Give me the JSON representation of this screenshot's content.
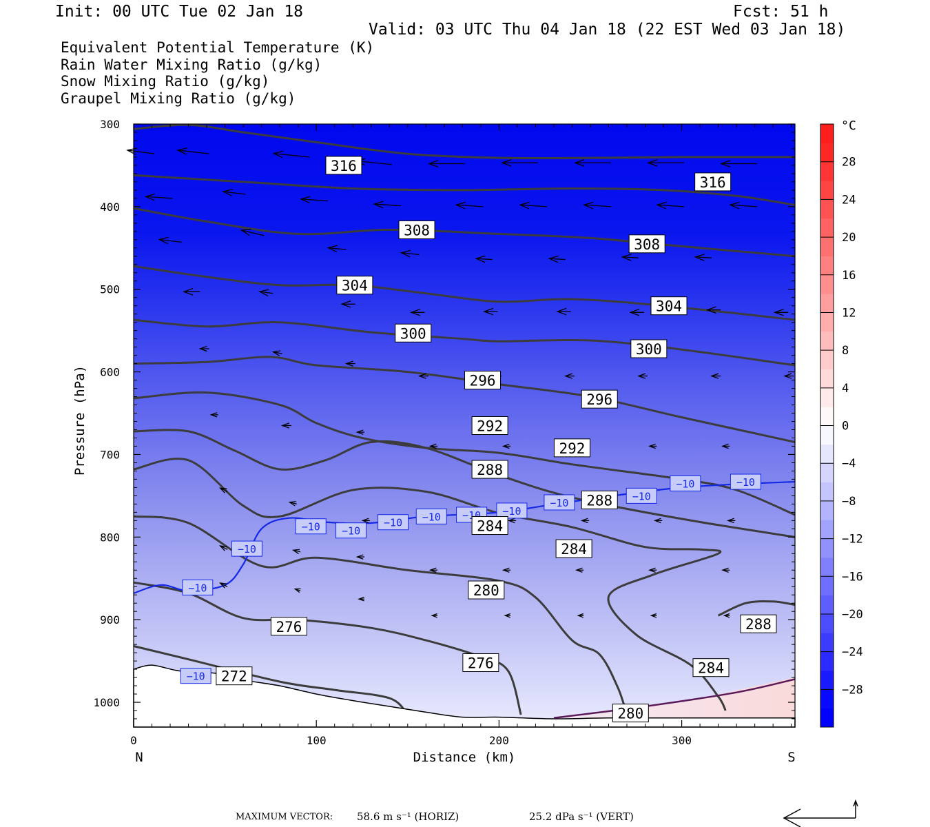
{
  "header": {
    "init": "Init: 00 UTC Tue 02 Jan 18",
    "fcst": "Fcst:   51 h",
    "valid": "Valid: 03 UTC Thu 04 Jan 18 (22 EST Wed 03 Jan 18)"
  },
  "fields": [
    {
      "label": "Equivalent Potential Temperature (K)",
      "color": "#555555"
    },
    {
      "label": "Rain Water Mixing Ratio (g/kg)",
      "color": "#0a7a0a"
    },
    {
      "label": "Snow Mixing Ratio (g/kg)",
      "color": "#f0905a"
    },
    {
      "label": "Graupel Mixing Ratio (g/kg)",
      "color": "#ee77ee"
    }
  ],
  "chart_data": {
    "type": "cross-section",
    "xlabel": "Distance (km)",
    "ylabel": "Pressure (hPa)",
    "xlim": [
      0,
      362
    ],
    "ylim": [
      1030,
      300
    ],
    "x_ticks": [
      0,
      100,
      200,
      300
    ],
    "y_ticks": [
      300,
      400,
      500,
      600,
      700,
      800,
      900,
      1000
    ],
    "x_end_labels": [
      "N",
      "S"
    ],
    "colorbar": {
      "unit": "°C",
      "range": [
        -32,
        32
      ],
      "tick_labels": [
        "28",
        "24",
        "20",
        "16",
        "12",
        "8",
        "4",
        "0",
        "−4",
        "−8",
        "−12",
        "−16",
        "−20",
        "−24",
        "−28"
      ],
      "tick_values": [
        28,
        24,
        20,
        16,
        12,
        8,
        4,
        0,
        -4,
        -8,
        -12,
        -16,
        -20,
        -24,
        -28
      ]
    },
    "theta_e_contours": [
      {
        "value": "316",
        "pts": [
          [
            0,
            306
          ],
          [
            30,
            301
          ],
          [
            60,
            310
          ],
          [
            100,
            322
          ],
          [
            150,
            336
          ],
          [
            200,
            341
          ],
          [
            250,
            341
          ],
          [
            300,
            340
          ],
          [
            362,
            340
          ]
        ]
      },
      {
        "value": "316",
        "pts": [
          [
            0,
            362
          ],
          [
            60,
            370
          ],
          [
            120,
            378
          ],
          [
            180,
            380
          ],
          [
            240,
            378
          ],
          [
            290,
            380
          ],
          [
            330,
            387
          ],
          [
            362,
            398
          ]
        ]
      },
      {
        "value": "308",
        "pts": [
          [
            0,
            402
          ],
          [
            40,
            418
          ],
          [
            90,
            433
          ],
          [
            140,
            428
          ],
          [
            200,
            433
          ],
          [
            250,
            438
          ],
          [
            300,
            448
          ],
          [
            362,
            460
          ]
        ]
      },
      {
        "value": "304",
        "pts": [
          [
            0,
            472
          ],
          [
            40,
            485
          ],
          [
            80,
            495
          ],
          [
            120,
            495
          ],
          [
            160,
            505
          ],
          [
            200,
            515
          ],
          [
            240,
            512
          ],
          [
            290,
            520
          ],
          [
            362,
            537
          ]
        ]
      },
      {
        "value": "300",
        "pts": [
          [
            0,
            537
          ],
          [
            40,
            545
          ],
          [
            80,
            540
          ],
          [
            130,
            552
          ],
          [
            180,
            560
          ],
          [
            200,
            563
          ],
          [
            250,
            562
          ],
          [
            300,
            573
          ],
          [
            362,
            592
          ]
        ]
      },
      {
        "value": "296",
        "pts": [
          [
            0,
            590
          ],
          [
            40,
            588
          ],
          [
            75,
            582
          ],
          [
            100,
            592
          ],
          [
            150,
            600
          ],
          [
            200,
            615
          ],
          [
            250,
            630
          ],
          [
            300,
            655
          ],
          [
            362,
            685
          ]
        ]
      },
      {
        "value": "292",
        "pts": [
          [
            0,
            632
          ],
          [
            40,
            625
          ],
          [
            80,
            640
          ],
          [
            100,
            662
          ],
          [
            125,
            680
          ],
          [
            160,
            692
          ],
          [
            200,
            698
          ],
          [
            240,
            712
          ],
          [
            300,
            730
          ],
          [
            330,
            743
          ],
          [
            362,
            773
          ]
        ]
      },
      {
        "value": "288",
        "pts": [
          [
            0,
            672
          ],
          [
            30,
            672
          ],
          [
            55,
            695
          ],
          [
            80,
            718
          ],
          [
            105,
            707
          ],
          [
            130,
            685
          ],
          [
            160,
            692
          ],
          [
            200,
            725
          ],
          [
            240,
            752
          ],
          [
            300,
            778
          ],
          [
            362,
            800
          ]
        ]
      },
      {
        "value": "284",
        "pts": [
          [
            0,
            718
          ],
          [
            30,
            707
          ],
          [
            60,
            762
          ],
          [
            80,
            775
          ],
          [
            120,
            743
          ],
          [
            160,
            745
          ],
          [
            200,
            771
          ],
          [
            240,
            788
          ],
          [
            280,
            812
          ],
          [
            310,
            815
          ],
          [
            320,
            820
          ],
          [
            285,
            845
          ],
          [
            260,
            872
          ],
          [
            275,
            918
          ],
          [
            305,
            955
          ],
          [
            320,
            993
          ],
          [
            324,
            1010
          ]
        ]
      },
      {
        "value": "280",
        "pts": [
          [
            0,
            775
          ],
          [
            30,
            783
          ],
          [
            70,
            835
          ],
          [
            100,
            825
          ],
          [
            150,
            840
          ],
          [
            200,
            853
          ],
          [
            220,
            873
          ],
          [
            240,
            925
          ],
          [
            255,
            942
          ],
          [
            265,
            982
          ],
          [
            270,
            1015
          ]
        ]
      },
      {
        "value": "276",
        "pts": [
          [
            0,
            855
          ],
          [
            30,
            868
          ],
          [
            60,
            898
          ],
          [
            90,
            900
          ],
          [
            130,
            910
          ],
          [
            160,
            925
          ],
          [
            190,
            945
          ],
          [
            205,
            962
          ],
          [
            212,
            1015
          ]
        ]
      },
      {
        "value": "272",
        "pts": [
          [
            0,
            932
          ],
          [
            30,
            948
          ],
          [
            80,
            975
          ],
          [
            110,
            985
          ],
          [
            140,
            995
          ],
          [
            150,
            1015
          ]
        ]
      },
      {
        "value": "288",
        "pts": [
          [
            320,
            895
          ],
          [
            335,
            880
          ],
          [
            350,
            878
          ],
          [
            362,
            882
          ]
        ]
      }
    ],
    "theta_e_labels": [
      {
        "text": "316",
        "x": 115,
        "p": 350
      },
      {
        "text": "316",
        "x": 317,
        "p": 370
      },
      {
        "text": "308",
        "x": 155,
        "p": 428
      },
      {
        "text": "308",
        "x": 281,
        "p": 445
      },
      {
        "text": "304",
        "x": 121,
        "p": 495
      },
      {
        "text": "304",
        "x": 293,
        "p": 520
      },
      {
        "text": "300",
        "x": 153,
        "p": 553
      },
      {
        "text": "300",
        "x": 282,
        "p": 572
      },
      {
        "text": "296",
        "x": 191,
        "p": 610
      },
      {
        "text": "296",
        "x": 255,
        "p": 633
      },
      {
        "text": "292",
        "x": 195,
        "p": 665
      },
      {
        "text": "292",
        "x": 240,
        "p": 692
      },
      {
        "text": "288",
        "x": 195,
        "p": 718
      },
      {
        "text": "288",
        "x": 255,
        "p": 755
      },
      {
        "text": "284",
        "x": 195,
        "p": 786
      },
      {
        "text": "284",
        "x": 241,
        "p": 814
      },
      {
        "text": "280",
        "x": 193,
        "p": 864
      },
      {
        "text": "280",
        "x": 272,
        "p": 1013
      },
      {
        "text": "276",
        "x": 85,
        "p": 908
      },
      {
        "text": "276",
        "x": 190,
        "p": 952
      },
      {
        "text": "272",
        "x": 55,
        "p": 968
      },
      {
        "text": "284",
        "x": 316,
        "p": 958
      },
      {
        "text": "288",
        "x": 342,
        "p": 905
      }
    ],
    "temp_isotherm": {
      "value": "−10",
      "pts": [
        [
          0,
          868
        ],
        [
          15,
          858
        ],
        [
          30,
          865
        ],
        [
          50,
          858
        ],
        [
          60,
          833
        ],
        [
          70,
          790
        ],
        [
          85,
          777
        ],
        [
          105,
          782
        ],
        [
          130,
          783
        ],
        [
          160,
          775
        ],
        [
          200,
          770
        ],
        [
          240,
          757
        ],
        [
          300,
          740
        ],
        [
          362,
          733
        ]
      ],
      "labels": [
        [
          35,
          861
        ],
        [
          62,
          814
        ],
        [
          97,
          787
        ],
        [
          119,
          792
        ],
        [
          142,
          782
        ],
        [
          163,
          775
        ],
        [
          185,
          773
        ],
        [
          207,
          768
        ],
        [
          233,
          758
        ],
        [
          278,
          750
        ],
        [
          302,
          735
        ],
        [
          335,
          733
        ],
        [
          34,
          968
        ]
      ]
    },
    "wind_vectors": [
      [
        0,
        336,
        -30,
        -4
      ],
      [
        30,
        336,
        -35,
        -4
      ],
      [
        85,
        340,
        -40,
        -4
      ],
      [
        130,
        349,
        -40,
        -4
      ],
      [
        170,
        348,
        -40,
        0
      ],
      [
        210,
        347,
        -40,
        0
      ],
      [
        250,
        347,
        -40,
        0
      ],
      [
        290,
        347,
        -40,
        0
      ],
      [
        330,
        348,
        -40,
        0
      ],
      [
        10,
        390,
        -30,
        -2
      ],
      [
        50,
        385,
        -25,
        -3
      ],
      [
        95,
        393,
        -30,
        -2
      ],
      [
        135,
        399,
        -30,
        -2
      ],
      [
        180,
        400,
        -30,
        -2
      ],
      [
        215,
        400,
        -30,
        -2
      ],
      [
        250,
        400,
        -30,
        -2
      ],
      [
        290,
        400,
        -30,
        -2
      ],
      [
        330,
        400,
        -30,
        -2
      ],
      [
        15,
        443,
        -25,
        -3
      ],
      [
        60,
        435,
        -25,
        -6
      ],
      [
        105,
        452,
        -20,
        -2
      ],
      [
        145,
        458,
        -20,
        -2
      ],
      [
        185,
        464,
        -18,
        -1
      ],
      [
        225,
        464,
        -18,
        -1
      ],
      [
        265,
        462,
        -18,
        -1
      ],
      [
        305,
        462,
        -18,
        -1
      ],
      [
        25,
        503,
        -18,
        0
      ],
      [
        65,
        505,
        -15,
        -2
      ],
      [
        110,
        518,
        -15,
        0
      ],
      [
        148,
        528,
        -15,
        0
      ],
      [
        188,
        527,
        -15,
        0
      ],
      [
        228,
        527,
        -15,
        0
      ],
      [
        268,
        528,
        -15,
        0
      ],
      [
        310,
        525,
        -15,
        0
      ],
      [
        347,
        528,
        -15,
        0
      ],
      [
        30,
        572,
        -10,
        0
      ],
      [
        70,
        578,
        -10,
        -2
      ],
      [
        110,
        590,
        -10,
        0
      ],
      [
        150,
        605,
        -10,
        0
      ],
      [
        190,
        605,
        -10,
        0
      ],
      [
        230,
        605,
        -10,
        0
      ],
      [
        270,
        605,
        -10,
        0
      ],
      [
        310,
        605,
        -10,
        0
      ],
      [
        350,
        605,
        -10,
        0
      ],
      [
        35,
        652,
        -8,
        0
      ],
      [
        75,
        665,
        -10,
        0
      ],
      [
        115,
        673,
        -8,
        0
      ],
      [
        155,
        690,
        -8,
        0
      ],
      [
        195,
        690,
        -8,
        0
      ],
      [
        235,
        690,
        -8,
        0
      ],
      [
        275,
        690,
        -8,
        0
      ],
      [
        315,
        690,
        -8,
        0
      ],
      [
        40,
        745,
        -8,
        -4
      ],
      [
        78,
        760,
        -8,
        -2
      ],
      [
        118,
        780,
        -8,
        0
      ],
      [
        158,
        780,
        -8,
        0
      ],
      [
        198,
        780,
        -8,
        0
      ],
      [
        238,
        780,
        -8,
        0
      ],
      [
        278,
        780,
        -8,
        0
      ],
      [
        318,
        780,
        -8,
        0
      ],
      [
        40,
        815,
        -8,
        -4
      ],
      [
        80,
        818,
        -8,
        -2
      ],
      [
        115,
        824,
        -8,
        0
      ],
      [
        155,
        840,
        -8,
        0
      ],
      [
        195,
        840,
        -8,
        0
      ],
      [
        235,
        840,
        -8,
        0
      ],
      [
        275,
        840,
        -8,
        0
      ],
      [
        315,
        840,
        -8,
        0
      ],
      [
        40,
        860,
        -8,
        -4
      ],
      [
        80,
        865,
        -6,
        -2
      ],
      [
        115,
        875,
        -6,
        0
      ],
      [
        155,
        895,
        -6,
        0
      ],
      [
        195,
        895,
        -6,
        0
      ],
      [
        235,
        895,
        -6,
        0
      ],
      [
        275,
        895,
        -6,
        0
      ],
      [
        315,
        895,
        -6,
        0
      ]
    ],
    "terrain_pts": [
      [
        0,
        960
      ],
      [
        10,
        955
      ],
      [
        25,
        962
      ],
      [
        45,
        965
      ],
      [
        60,
        973
      ],
      [
        80,
        980
      ],
      [
        100,
        990
      ],
      [
        120,
        998
      ],
      [
        140,
        1005
      ],
      [
        160,
        1012
      ],
      [
        180,
        1018
      ],
      [
        200,
        1018
      ],
      [
        230,
        1020
      ],
      [
        260,
        1019
      ],
      [
        300,
        1019
      ],
      [
        362,
        1019
      ]
    ]
  },
  "footer": {
    "max_vector_label": "MAXIMUM VECTOR:",
    "horiz": "58.6 m s⁻¹ (HORIZ)",
    "vert": "25.2 dPa s⁻¹ (VERT)"
  }
}
